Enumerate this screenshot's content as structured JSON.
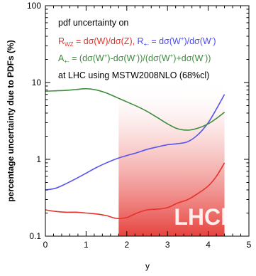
{
  "chart_data": {
    "type": "line",
    "ylabel": "percentage uncertainty due to PDFs (%)",
    "xlabel": "y",
    "xlim": [
      0,
      5
    ],
    "ylim": [
      0.1,
      100
    ],
    "yscale": "log",
    "xticks": [
      "0",
      "1",
      "2",
      "3",
      "4",
      "5"
    ],
    "yticks": [
      "0.1",
      "1",
      "10",
      "100"
    ],
    "grid": false,
    "annotation": {
      "line1": "pdf uncertainty on",
      "rwz_text": "R",
      "rwz_sub": "WZ",
      "rwz_eq": " = dσ(W)/dσ(Z),",
      "rpm_text": " R",
      "rpm_sub": "+-",
      "rpm_eq_a": " = dσ(W",
      "rpm_sup1": "+",
      "rpm_eq_b": ")/dσ(W",
      "rpm_sup2": "-",
      "rpm_eq_c": ")",
      "a_text": "A",
      "a_sub": "+-",
      "a_eq_a": " = (dσ(W",
      "a_sup1": "+",
      "a_eq_b": ")-dσ(W",
      "a_sup2": "-",
      "a_eq_c": "))/(dσ(W",
      "a_sup3": "+",
      "a_eq_d": ")+dσ(W",
      "a_sup4": "-",
      "a_eq_e": "))",
      "line4": "at LHC using MSTW2008NLO (68%cl)"
    },
    "region": {
      "label": "LHCb",
      "x_from": 1.8,
      "x_to": 4.4,
      "color": "#e53a35"
    },
    "series": [
      {
        "key": "rwz",
        "color": "#e8312a",
        "x": [
          0,
          0.25,
          0.5,
          0.75,
          1.0,
          1.25,
          1.5,
          1.75,
          2.0,
          2.25,
          2.5,
          2.75,
          3.0,
          3.25,
          3.5,
          3.75,
          4.0,
          4.2,
          4.4
        ],
        "y": [
          0.22,
          0.21,
          0.205,
          0.205,
          0.2,
          0.195,
          0.185,
          0.17,
          0.175,
          0.2,
          0.22,
          0.225,
          0.235,
          0.27,
          0.3,
          0.36,
          0.45,
          0.6,
          0.9
        ]
      },
      {
        "key": "rpm",
        "color": "#5555ee",
        "x": [
          0,
          0.25,
          0.5,
          0.75,
          1.0,
          1.25,
          1.5,
          1.75,
          2.0,
          2.25,
          2.5,
          2.75,
          3.0,
          3.25,
          3.5,
          3.75,
          4.0,
          4.2,
          4.4
        ],
        "y": [
          0.4,
          0.42,
          0.48,
          0.56,
          0.66,
          0.78,
          0.9,
          1.02,
          1.12,
          1.22,
          1.35,
          1.45,
          1.55,
          1.6,
          1.7,
          2.1,
          3.0,
          4.5,
          7.0
        ]
      },
      {
        "key": "a",
        "color": "#3c8c3c",
        "x": [
          0,
          0.25,
          0.5,
          0.75,
          1.0,
          1.25,
          1.5,
          1.75,
          2.0,
          2.25,
          2.5,
          2.75,
          3.0,
          3.25,
          3.5,
          3.75,
          4.0,
          4.2,
          4.4
        ],
        "y": [
          7.7,
          7.8,
          7.9,
          8.1,
          8.3,
          8.0,
          7.3,
          6.4,
          5.6,
          4.9,
          4.2,
          3.5,
          2.9,
          2.5,
          2.4,
          2.55,
          2.9,
          3.4,
          4.1
        ]
      }
    ]
  }
}
